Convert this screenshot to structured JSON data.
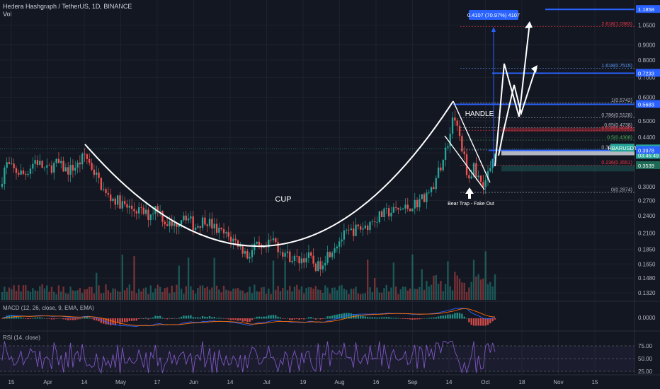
{
  "header": {
    "symbol_line": "Hedera Hashgraph / TetherUS, 1D, BINANCE",
    "vol_label": "Vol",
    "macd_label": "MACD (12, 26, close, 9, EMA, EMA)",
    "rsi_label": "RSI (14, close)"
  },
  "chart_data": {
    "type": "candlestick",
    "title": "Hedera Hashgraph / TetherUS, 1D, BINANCE",
    "price_scale": "log",
    "ylim": [
      0.125,
      1.22
    ],
    "y_ticks": [
      "1.0500",
      "0.9000",
      "0.8000",
      "0.7000",
      "0.6000",
      "0.5000",
      "0.4400",
      "0.3900",
      "0.3000",
      "0.2700",
      "0.2400",
      "0.2100",
      "0.1850",
      "0.1650",
      "0.1480",
      "0.1320"
    ],
    "x_ticks": [
      "15",
      "Apr",
      "14",
      "May",
      "17",
      "Jun",
      "14",
      "Jul",
      "19",
      "Aug",
      "16",
      "Sep",
      "14",
      "Oct",
      "18",
      "Nov",
      "15"
    ],
    "price_path": [
      [
        0,
        0.3
      ],
      [
        8,
        0.36
      ],
      [
        20,
        0.34
      ],
      [
        35,
        0.33
      ],
      [
        50,
        0.37
      ],
      [
        65,
        0.34
      ],
      [
        80,
        0.36
      ],
      [
        95,
        0.34
      ],
      [
        110,
        0.355
      ],
      [
        120,
        0.385
      ],
      [
        135,
        0.33
      ],
      [
        150,
        0.28
      ],
      [
        165,
        0.27
      ],
      [
        180,
        0.255
      ],
      [
        195,
        0.25
      ],
      [
        210,
        0.24
      ],
      [
        222,
        0.26
      ],
      [
        232,
        0.23
      ],
      [
        245,
        0.22
      ],
      [
        260,
        0.245
      ],
      [
        275,
        0.22
      ],
      [
        290,
        0.235
      ],
      [
        305,
        0.215
      ],
      [
        320,
        0.205
      ],
      [
        335,
        0.195
      ],
      [
        350,
        0.175
      ],
      [
        360,
        0.19
      ],
      [
        372,
        0.18
      ],
      [
        385,
        0.2
      ],
      [
        395,
        0.185
      ],
      [
        408,
        0.175
      ],
      [
        420,
        0.17
      ],
      [
        435,
        0.175
      ],
      [
        448,
        0.16
      ],
      [
        460,
        0.175
      ],
      [
        472,
        0.19
      ],
      [
        485,
        0.205
      ],
      [
        500,
        0.215
      ],
      [
        515,
        0.22
      ],
      [
        530,
        0.235
      ],
      [
        545,
        0.245
      ],
      [
        560,
        0.25
      ],
      [
        575,
        0.255
      ],
      [
        588,
        0.265
      ],
      [
        600,
        0.28
      ],
      [
        612,
        0.3
      ],
      [
        622,
        0.35
      ],
      [
        632,
        0.42
      ],
      [
        640,
        0.53
      ],
      [
        648,
        0.45
      ],
      [
        655,
        0.38
      ],
      [
        662,
        0.32
      ],
      [
        670,
        0.35
      ],
      [
        678,
        0.31
      ],
      [
        686,
        0.315
      ],
      [
        694,
        0.36
      ],
      [
        699,
        0.4028
      ]
    ],
    "candle_count": 210,
    "volume_scale_max": 100,
    "macd_axis": [
      "0.0000"
    ],
    "rsi_axis": [
      "75.00",
      "50.00",
      "25.00"
    ],
    "price_tags": [
      {
        "text": "1.1858",
        "value": 1.1858,
        "color": "#2962ff"
      },
      {
        "text": "0.7233",
        "value": 0.7233,
        "color": "#2962ff"
      },
      {
        "text": "0.5683",
        "value": 0.5683,
        "color": "#2962ff"
      },
      {
        "text": "HBARUSDT",
        "value": 0.4028,
        "color": "#26a69a"
      },
      {
        "text": "0.4028",
        "value": 0.4028,
        "color": "#26a69a",
        "sub": "03:46:49"
      },
      {
        "text": "0.3978",
        "value": 0.3978,
        "color": "#2962ff"
      },
      {
        "text": "0.3539",
        "value": 0.3539,
        "color": "#1e6b55"
      }
    ],
    "fib_levels": [
      {
        "text": "2.618(1.0383)",
        "value": 1.0383,
        "color": "#f23645"
      },
      {
        "text": "1.618(0.7515)",
        "value": 0.7515,
        "color": "#5b9cf6"
      },
      {
        "text": "1(0.5742)",
        "value": 0.5742,
        "color": "#b2b5be"
      },
      {
        "text": "0.786(0.5128)",
        "value": 0.5128,
        "color": "#b2b5be"
      },
      {
        "text": "0.65(0.4738)",
        "value": 0.4738,
        "color": "#b2b5be"
      },
      {
        "text": "0.618(0.4646)",
        "value": 0.4646,
        "color": "#f23645"
      },
      {
        "text": "0.5(0.4308)",
        "value": 0.4308,
        "color": "#4caf50"
      },
      {
        "text": "0.382(0.3993)",
        "value": 0.3993,
        "color": "#b2b5be"
      },
      {
        "text": "0.236(0.3551)",
        "value": 0.3551,
        "color": "#f23645"
      },
      {
        "text": "0(0.2874)",
        "value": 0.2874,
        "color": "#b2b5be"
      }
    ],
    "measure_label": "0.4107 (70.97%) 4107",
    "annotations": {
      "cup": "CUP",
      "handle": "HANDLE",
      "bear_trap": "Bear Trap - Fake Out"
    }
  }
}
